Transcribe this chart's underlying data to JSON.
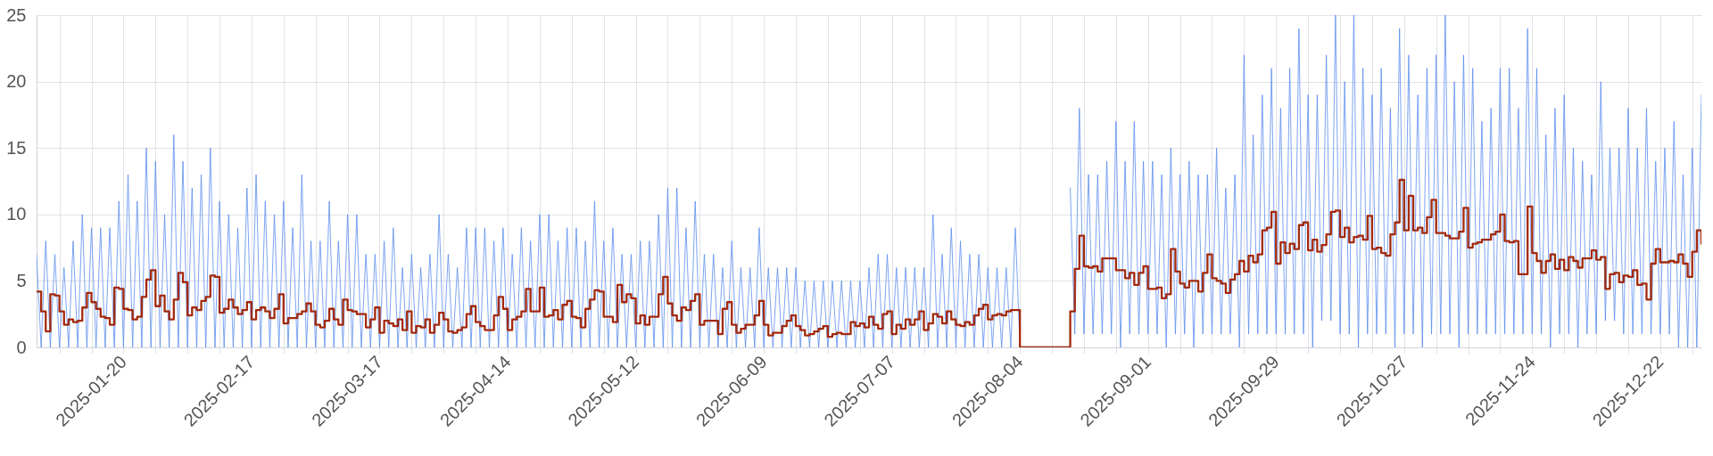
{
  "chart_data": {
    "type": "line",
    "x": [
      "2025-01-01",
      "2025-01-02",
      "2025-01-03",
      "2025-01-04",
      "2025-01-05",
      "2025-01-06",
      "2025-01-07",
      "2025-01-08",
      "2025-01-09",
      "2025-01-10",
      "2025-01-11",
      "2025-01-12",
      "2025-01-13",
      "2025-01-14",
      "2025-01-15",
      "2025-01-16",
      "2025-01-17",
      "2025-01-18",
      "2025-01-19",
      "2025-01-20",
      "2025-01-21",
      "2025-01-22",
      "2025-01-23",
      "2025-01-24",
      "2025-01-25",
      "2025-01-26",
      "2025-01-27",
      "2025-01-28",
      "2025-01-29",
      "2025-01-30",
      "2025-01-31",
      "2025-02-01",
      "2025-02-02",
      "2025-02-03",
      "2025-02-04",
      "2025-02-05",
      "2025-02-06",
      "2025-02-07",
      "2025-02-08",
      "2025-02-09",
      "2025-02-10",
      "2025-02-11",
      "2025-02-12",
      "2025-02-13",
      "2025-02-14",
      "2025-02-15",
      "2025-02-16",
      "2025-02-17",
      "2025-02-18",
      "2025-02-19",
      "2025-02-20",
      "2025-02-21",
      "2025-02-22",
      "2025-02-23",
      "2025-02-24",
      "2025-02-25",
      "2025-02-26",
      "2025-02-27",
      "2025-02-28",
      "2025-03-01",
      "2025-03-02",
      "2025-03-03",
      "2025-03-04",
      "2025-03-05",
      "2025-03-06",
      "2025-03-07",
      "2025-03-08",
      "2025-03-09",
      "2025-03-10",
      "2025-03-11",
      "2025-03-12",
      "2025-03-13",
      "2025-03-14",
      "2025-03-15",
      "2025-03-16",
      "2025-03-17",
      "2025-03-18",
      "2025-03-19",
      "2025-03-20",
      "2025-03-21",
      "2025-03-22",
      "2025-03-23",
      "2025-03-24",
      "2025-03-25",
      "2025-03-26",
      "2025-03-27",
      "2025-03-28",
      "2025-03-29",
      "2025-03-30",
      "2025-03-31",
      "2025-04-01",
      "2025-04-02",
      "2025-04-03",
      "2025-04-04",
      "2025-04-05",
      "2025-04-06",
      "2025-04-07",
      "2025-04-08",
      "2025-04-09",
      "2025-04-10",
      "2025-04-11",
      "2025-04-12",
      "2025-04-13",
      "2025-04-14",
      "2025-04-15",
      "2025-04-16",
      "2025-04-17",
      "2025-04-18",
      "2025-04-19",
      "2025-04-20",
      "2025-04-21",
      "2025-04-22",
      "2025-04-23",
      "2025-04-24",
      "2025-04-25",
      "2025-04-26",
      "2025-04-27",
      "2025-04-28",
      "2025-04-29",
      "2025-04-30",
      "2025-05-01",
      "2025-05-02",
      "2025-05-03",
      "2025-05-04",
      "2025-05-05",
      "2025-05-06",
      "2025-05-07",
      "2025-05-08",
      "2025-05-09",
      "2025-05-10",
      "2025-05-11",
      "2025-05-12",
      "2025-05-13",
      "2025-05-14",
      "2025-05-15",
      "2025-05-16",
      "2025-05-17",
      "2025-05-18",
      "2025-05-19",
      "2025-05-20",
      "2025-05-21",
      "2025-05-22",
      "2025-05-23",
      "2025-05-24",
      "2025-05-25",
      "2025-05-26",
      "2025-05-27",
      "2025-05-28",
      "2025-05-29",
      "2025-05-30",
      "2025-05-31",
      "2025-06-01",
      "2025-06-02",
      "2025-06-03",
      "2025-06-04",
      "2025-06-05",
      "2025-06-06",
      "2025-06-07",
      "2025-06-08",
      "2025-06-09",
      "2025-06-10",
      "2025-06-11",
      "2025-06-12",
      "2025-06-13",
      "2025-06-14",
      "2025-06-15",
      "2025-06-16",
      "2025-06-17",
      "2025-06-18",
      "2025-06-19",
      "2025-06-20",
      "2025-06-21",
      "2025-06-22",
      "2025-06-23",
      "2025-06-24",
      "2025-06-25",
      "2025-06-26",
      "2025-06-27",
      "2025-06-28",
      "2025-06-29",
      "2025-06-30",
      "2025-07-01",
      "2025-07-02",
      "2025-07-03",
      "2025-07-04",
      "2025-07-05",
      "2025-07-06",
      "2025-07-07",
      "2025-07-08",
      "2025-07-09",
      "2025-07-10",
      "2025-07-11",
      "2025-07-12",
      "2025-07-13",
      "2025-07-14",
      "2025-07-15",
      "2025-07-16",
      "2025-07-17",
      "2025-07-18",
      "2025-07-19",
      "2025-07-20",
      "2025-07-21",
      "2025-07-22",
      "2025-07-23",
      "2025-07-24",
      "2025-07-25",
      "2025-07-26",
      "2025-07-27",
      "2025-07-28",
      "2025-07-29",
      "2025-07-30",
      "2025-07-31",
      "2025-08-01",
      "2025-08-02",
      "2025-08-03",
      "2025-08-04",
      "2025-08-05",
      "2025-08-06",
      "2025-08-07",
      "2025-08-08",
      "2025-08-09",
      "2025-08-10",
      "2025-08-11",
      "2025-08-12",
      "2025-08-13",
      "2025-08-14",
      "2025-08-15",
      "2025-08-16",
      "2025-08-17",
      "2025-08-18",
      "2025-08-19",
      "2025-08-20",
      "2025-08-21",
      "2025-08-22",
      "2025-08-23",
      "2025-08-24",
      "2025-08-25",
      "2025-08-26",
      "2025-08-27",
      "2025-08-28",
      "2025-08-29",
      "2025-08-30",
      "2025-08-31",
      "2025-09-01",
      "2025-09-02",
      "2025-09-03",
      "2025-09-04",
      "2025-09-05",
      "2025-09-06",
      "2025-09-07",
      "2025-09-08",
      "2025-09-09",
      "2025-09-10",
      "2025-09-11",
      "2025-09-12",
      "2025-09-13",
      "2025-09-14",
      "2025-09-15",
      "2025-09-16",
      "2025-09-17",
      "2025-09-18",
      "2025-09-19",
      "2025-09-20",
      "2025-09-21",
      "2025-09-22",
      "2025-09-23",
      "2025-09-24",
      "2025-09-25",
      "2025-09-26",
      "2025-09-27",
      "2025-09-28",
      "2025-09-29",
      "2025-09-30",
      "2025-10-01",
      "2025-10-02",
      "2025-10-03",
      "2025-10-04",
      "2025-10-05",
      "2025-10-06",
      "2025-10-07",
      "2025-10-08",
      "2025-10-09",
      "2025-10-10",
      "2025-10-11",
      "2025-10-12",
      "2025-10-13",
      "2025-10-14",
      "2025-10-15",
      "2025-10-16",
      "2025-10-17",
      "2025-10-18",
      "2025-10-19",
      "2025-10-20",
      "2025-10-21",
      "2025-10-22",
      "2025-10-23",
      "2025-10-24",
      "2025-10-25",
      "2025-10-26",
      "2025-10-27",
      "2025-10-28",
      "2025-10-29",
      "2025-10-30",
      "2025-10-31",
      "2025-11-01",
      "2025-11-02",
      "2025-11-03",
      "2025-11-04",
      "2025-11-05",
      "2025-11-06",
      "2025-11-07",
      "2025-11-08",
      "2025-11-09",
      "2025-11-10",
      "2025-11-11",
      "2025-11-12",
      "2025-11-13",
      "2025-11-14",
      "2025-11-15",
      "2025-11-16",
      "2025-11-17",
      "2025-11-18",
      "2025-11-19",
      "2025-11-20",
      "2025-11-21",
      "2025-11-22",
      "2025-11-23",
      "2025-11-24",
      "2025-11-25",
      "2025-11-26",
      "2025-11-27",
      "2025-11-28",
      "2025-11-29",
      "2025-11-30",
      "2025-12-01",
      "2025-12-02",
      "2025-12-03",
      "2025-12-04",
      "2025-12-05",
      "2025-12-06",
      "2025-12-07",
      "2025-12-08",
      "2025-12-09",
      "2025-12-10",
      "2025-12-11",
      "2025-12-12",
      "2025-12-13",
      "2025-12-14",
      "2025-12-15",
      "2025-12-16",
      "2025-12-17",
      "2025-12-18",
      "2025-12-19",
      "2025-12-20",
      "2025-12-21",
      "2025-12-22",
      "2025-12-23",
      "2025-12-24",
      "2025-12-25",
      "2025-12-26",
      "2025-12-27",
      "2025-12-28",
      "2025-12-29",
      "2025-12-30",
      "2025-12-31"
    ],
    "series": [
      {
        "color": "#5b8def",
        "values": [
          7,
          0,
          8,
          0,
          7,
          0,
          6,
          0,
          8,
          0,
          10,
          0,
          9,
          0,
          9,
          0,
          9,
          0,
          11,
          0,
          13,
          0,
          11,
          0,
          15,
          0,
          14,
          0,
          10,
          0,
          16,
          0,
          14,
          0,
          12,
          0,
          13,
          0,
          15,
          0,
          11,
          0,
          10,
          0,
          9,
          0,
          12,
          0,
          13,
          0,
          11,
          0,
          10,
          0,
          11,
          0,
          9,
          0,
          13,
          0,
          8,
          0,
          8,
          0,
          11,
          0,
          8,
          0,
          10,
          0,
          10,
          0,
          7,
          0,
          7,
          0,
          8,
          0,
          9,
          0,
          6,
          0,
          7,
          0,
          6,
          0,
          7,
          0,
          10,
          0,
          7,
          0,
          6,
          0,
          9,
          0,
          9,
          0,
          9,
          0,
          8,
          0,
          9,
          0,
          7,
          0,
          9,
          0,
          8,
          0,
          10,
          0,
          10,
          0,
          8,
          0,
          9,
          0,
          9,
          0,
          8,
          0,
          11,
          0,
          8,
          0,
          9,
          0,
          7,
          0,
          7,
          0,
          8,
          0,
          8,
          0,
          10,
          0,
          12,
          0,
          12,
          0,
          9,
          0,
          11,
          0,
          7,
          0,
          7,
          0,
          6,
          0,
          8,
          0,
          6,
          0,
          6,
          0,
          9,
          0,
          6,
          0,
          6,
          0,
          6,
          0,
          6,
          0,
          5,
          0,
          5,
          0,
          5,
          0,
          5,
          0,
          5,
          0,
          5,
          0,
          5,
          0,
          6,
          0,
          7,
          0,
          7,
          0,
          6,
          0,
          6,
          0,
          6,
          0,
          6,
          0,
          10,
          0,
          7,
          0,
          9,
          0,
          8,
          0,
          7,
          0,
          7,
          0,
          6,
          0,
          6,
          0,
          6,
          0,
          9,
          0,
          null,
          null,
          null,
          null,
          null,
          null,
          null,
          null,
          null,
          null,
          12,
          1,
          18,
          1,
          13,
          1,
          13,
          1,
          14,
          1,
          17,
          0,
          14,
          1,
          17,
          1,
          14,
          1,
          14,
          1,
          13,
          0,
          15,
          1,
          13,
          1,
          14,
          0,
          13,
          1,
          13,
          1,
          15,
          1,
          12,
          1,
          13,
          0,
          22,
          1,
          16,
          1,
          19,
          1,
          21,
          1,
          18,
          1,
          21,
          1,
          24,
          1,
          19,
          0,
          19,
          2,
          22,
          2,
          25,
          1,
          20,
          1,
          25,
          0,
          21,
          1,
          19,
          1,
          21,
          1,
          18,
          0,
          24,
          1,
          22,
          1,
          19,
          0,
          21,
          1,
          22,
          1,
          25,
          1,
          20,
          0,
          22,
          1,
          21,
          1,
          17,
          1,
          18,
          1,
          21,
          1,
          21,
          1,
          18,
          1,
          24,
          1,
          21,
          1,
          16,
          0,
          18,
          1,
          19,
          1,
          15,
          0,
          14,
          1,
          13,
          1,
          20,
          2,
          15,
          2,
          15,
          1,
          18,
          1,
          15,
          1,
          18,
          1,
          14,
          1,
          15,
          1,
          17,
          0,
          13,
          0,
          15,
          0,
          19
        ]
      },
      {
        "type": "step",
        "color": "#a3290c",
        "values": [
          4.2,
          2.7,
          1.2,
          4.0,
          3.9,
          2.7,
          1.7,
          2.1,
          1.9,
          2.0,
          3.0,
          4.1,
          3.4,
          2.9,
          2.3,
          2.2,
          1.7,
          4.5,
          4.4,
          2.9,
          2.8,
          2.1,
          2.3,
          3.8,
          5.1,
          5.8,
          3.1,
          3.9,
          2.7,
          2.1,
          3.6,
          5.6,
          4.9,
          2.4,
          3.0,
          2.8,
          3.5,
          3.8,
          5.4,
          5.3,
          2.6,
          2.9,
          3.6,
          3.0,
          2.5,
          2.8,
          3.4,
          2.1,
          2.8,
          3.0,
          2.7,
          2.2,
          2.9,
          4.0,
          1.8,
          2.2,
          2.2,
          2.5,
          2.7,
          3.3,
          2.7,
          1.7,
          1.5,
          2.0,
          2.9,
          2.1,
          1.7,
          3.6,
          2.8,
          2.7,
          2.5,
          2.5,
          1.5,
          2.1,
          3.0,
          1.1,
          2.0,
          1.8,
          1.6,
          2.1,
          1.3,
          2.7,
          1.1,
          1.6,
          1.5,
          2.1,
          1.1,
          1.7,
          2.6,
          2.1,
          1.2,
          1.1,
          1.3,
          1.5,
          2.5,
          3.1,
          1.9,
          1.6,
          1.3,
          1.3,
          2.4,
          3.8,
          2.9,
          1.3,
          2.1,
          2.3,
          2.7,
          4.4,
          2.7,
          2.7,
          4.5,
          2.3,
          2.4,
          2.8,
          2.1,
          3.2,
          3.5,
          2.3,
          2.2,
          1.5,
          2.9,
          3.6,
          4.3,
          4.2,
          2.3,
          2.3,
          1.9,
          4.7,
          3.4,
          4.0,
          3.7,
          1.8,
          2.4,
          1.7,
          2.3,
          2.3,
          4.0,
          5.3,
          3.3,
          2.4,
          2.0,
          3.0,
          2.8,
          3.5,
          4.0,
          1.7,
          2.0,
          2.0,
          2.0,
          1.0,
          2.9,
          3.4,
          1.7,
          1.1,
          1.4,
          1.7,
          1.7,
          2.4,
          3.5,
          1.7,
          0.9,
          1.1,
          1.1,
          1.6,
          2.0,
          2.4,
          1.6,
          1.3,
          0.9,
          1.0,
          1.2,
          1.4,
          1.6,
          0.8,
          1.0,
          1.1,
          1.0,
          1.0,
          1.9,
          1.6,
          1.8,
          1.5,
          2.3,
          1.7,
          1.4,
          2.5,
          2.7,
          1.0,
          1.7,
          1.4,
          2.1,
          1.7,
          2.1,
          2.7,
          1.3,
          1.8,
          2.5,
          2.3,
          1.8,
          2.7,
          2.1,
          1.7,
          1.6,
          1.9,
          1.7,
          2.4,
          2.9,
          3.2,
          2.1,
          2.4,
          2.5,
          2.4,
          2.7,
          2.8,
          2.8,
          0,
          0,
          0,
          0,
          0,
          0,
          0,
          0,
          0,
          0,
          0,
          2.7,
          5.9,
          8.4,
          6.1,
          6.0,
          6.1,
          5.7,
          6.7,
          6.7,
          6.7,
          5.8,
          5.8,
          5.2,
          5.6,
          4.7,
          5.6,
          6.1,
          4.4,
          4.4,
          4.5,
          3.7,
          4.0,
          7.4,
          5.7,
          4.8,
          4.5,
          5.0,
          5.0,
          4.2,
          5.6,
          7.0,
          5.2,
          5.0,
          4.8,
          4.1,
          5.1,
          5.5,
          6.5,
          5.7,
          6.9,
          6.4,
          7.0,
          8.8,
          9.0,
          10.2,
          6.3,
          7.9,
          7.1,
          7.8,
          7.4,
          9.2,
          9.4,
          7.3,
          8.1,
          7.2,
          7.7,
          8.5,
          10.2,
          10.3,
          8.3,
          9.0,
          7.9,
          8.3,
          8.4,
          8.1,
          9.9,
          7.4,
          7.5,
          7.1,
          6.9,
          8.5,
          9.4,
          12.6,
          8.8,
          11.4,
          8.8,
          9.0,
          8.6,
          9.8,
          11.1,
          8.6,
          8.6,
          8.4,
          8.2,
          8.2,
          8.7,
          10.5,
          7.5,
          7.8,
          7.9,
          8.1,
          8.1,
          8.5,
          8.7,
          10.0,
          8.0,
          7.9,
          8.0,
          5.5,
          5.5,
          10.6,
          7.1,
          6.5,
          5.6,
          6.5,
          7.0,
          5.9,
          6.6,
          5.8,
          6.8,
          6.5,
          6.0,
          6.7,
          6.7,
          7.3,
          6.6,
          6.8,
          4.4,
          5.5,
          5.6,
          4.9,
          5.4,
          5.3,
          5.8,
          4.7,
          4.8,
          3.6,
          6.3,
          7.4,
          6.4,
          6.4,
          6.5,
          6.4,
          7.0,
          6.3,
          5.3,
          7.2,
          8.8,
          7.8
        ]
      }
    ],
    "xlim": [
      "2025-01-01",
      "2025-12-31"
    ],
    "xticks": [
      {
        "value": "2025-01-06",
        "label": null
      },
      {
        "value": "2025-01-13",
        "label": null
      },
      "2025-01-20",
      {
        "value": "2025-01-27",
        "label": null
      },
      {
        "value": "2025-02-03",
        "label": null
      },
      {
        "value": "2025-02-10",
        "label": null
      },
      "2025-02-17",
      {
        "value": "2025-02-24",
        "label": null
      },
      {
        "value": "2025-03-03",
        "label": null
      },
      {
        "value": "2025-03-10",
        "label": null
      },
      "2025-03-17",
      {
        "value": "2025-03-24",
        "label": null
      },
      {
        "value": "2025-03-31",
        "label": null
      },
      {
        "value": "2025-04-07",
        "label": null
      },
      "2025-04-14",
      {
        "value": "2025-04-21",
        "label": null
      },
      {
        "value": "2025-04-28",
        "label": null
      },
      {
        "value": "2025-05-05",
        "label": null
      },
      "2025-05-12",
      {
        "value": "2025-05-19",
        "label": null
      },
      {
        "value": "2025-05-26",
        "label": null
      },
      {
        "value": "2025-06-02",
        "label": null
      },
      "2025-06-09",
      {
        "value": "2025-06-16",
        "label": null
      },
      {
        "value": "2025-06-23",
        "label": null
      },
      {
        "value": "2025-06-30",
        "label": null
      },
      "2025-07-07",
      {
        "value": "2025-07-14",
        "label": null
      },
      {
        "value": "2025-07-21",
        "label": null
      },
      {
        "value": "2025-07-28",
        "label": null
      },
      "2025-08-04",
      {
        "value": "2025-08-11",
        "label": null
      },
      {
        "value": "2025-08-18",
        "label": null
      },
      {
        "value": "2025-08-25",
        "label": null
      },
      "2025-09-01",
      {
        "value": "2025-09-08",
        "label": null
      },
      {
        "value": "2025-09-15",
        "label": null
      },
      {
        "value": "2025-09-22",
        "label": null
      },
      "2025-09-29",
      {
        "value": "2025-10-06",
        "label": null
      },
      {
        "value": "2025-10-13",
        "label": null
      },
      {
        "value": "2025-10-20",
        "label": null
      },
      "2025-10-27",
      {
        "value": "2025-11-03",
        "label": null
      },
      {
        "value": "2025-11-10",
        "label": null
      },
      {
        "value": "2025-11-17",
        "label": null
      },
      "2025-11-24",
      {
        "value": "2025-12-01",
        "label": null
      },
      {
        "value": "2025-12-08",
        "label": null
      },
      {
        "value": "2025-12-15",
        "label": null
      },
      "2025-12-22",
      {
        "value": "2025-12-29",
        "label": null
      }
    ],
    "ylim": [
      0,
      25
    ],
    "yticks": [
      0,
      5,
      10,
      15,
      20,
      25
    ],
    "grid": true
  }
}
